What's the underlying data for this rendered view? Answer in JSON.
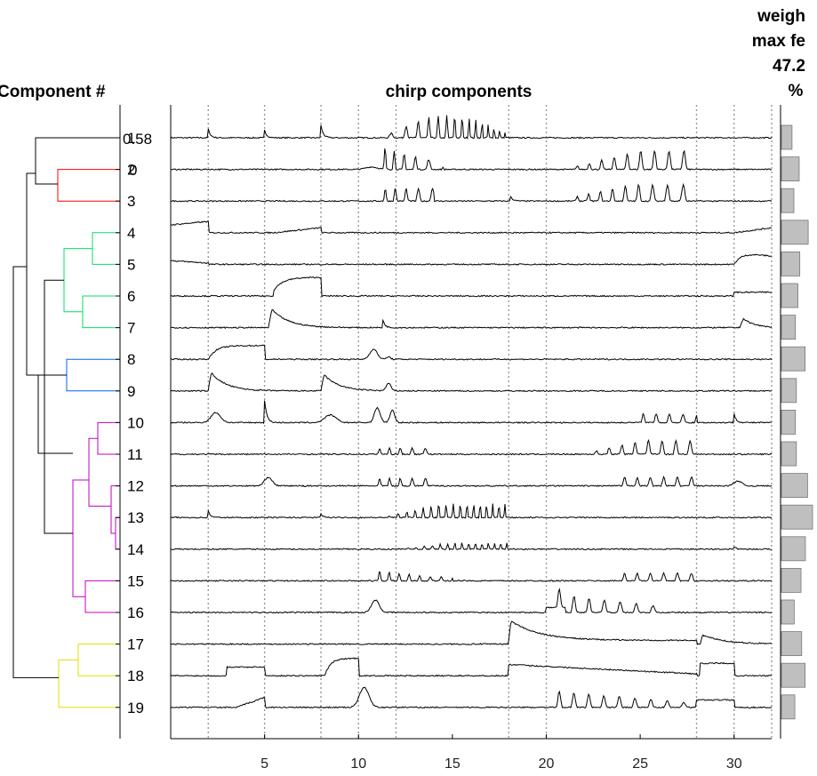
{
  "chart_data": {
    "type": "line",
    "title": "chirp components",
    "left_panel": {
      "title": "Component #",
      "row_labels": [
        "1",
        "2",
        "3",
        "4",
        "5",
        "6",
        "7",
        "8",
        "9",
        "10",
        "11",
        "12",
        "13",
        "14",
        "15",
        "16",
        "17",
        "18",
        "19"
      ],
      "colorbar_ticks": [
        "0.58",
        "0"
      ],
      "dendrogram_colors": {
        "red": "#ff0000",
        "green": "#00e060",
        "blue": "#0060ff",
        "magenta": "#c000c0",
        "yellow": "#e0e000",
        "black": "#000000"
      }
    },
    "right_panel": {
      "title_lines": [
        "weigh",
        "max fe",
        "47.2",
        "%"
      ],
      "bar_color": "#bfbfbf",
      "values": [
        0.34,
        0.57,
        0.4,
        0.86,
        0.59,
        0.53,
        0.45,
        0.76,
        0.48,
        0.45,
        0.48,
        0.84,
        1.0,
        0.77,
        0.63,
        0.41,
        0.65,
        0.76,
        0.43
      ]
    },
    "x_axis": {
      "ticks": [
        5,
        10,
        15,
        20,
        25,
        30
      ],
      "xlim": [
        0,
        32
      ],
      "event_lines": [
        2,
        5,
        8,
        10,
        12,
        18,
        20,
        28,
        30,
        32
      ]
    },
    "series": [
      {
        "label": "1"
      },
      {
        "label": "2"
      },
      {
        "label": "3"
      },
      {
        "label": "4"
      },
      {
        "label": "5"
      },
      {
        "label": "6"
      },
      {
        "label": "7"
      },
      {
        "label": "8"
      },
      {
        "label": "9"
      },
      {
        "label": "10"
      },
      {
        "label": "11"
      },
      {
        "label": "12"
      },
      {
        "label": "13"
      },
      {
        "label": "14"
      },
      {
        "label": "15"
      },
      {
        "label": "16"
      },
      {
        "label": "17"
      },
      {
        "label": "18"
      },
      {
        "label": "19"
      }
    ]
  }
}
